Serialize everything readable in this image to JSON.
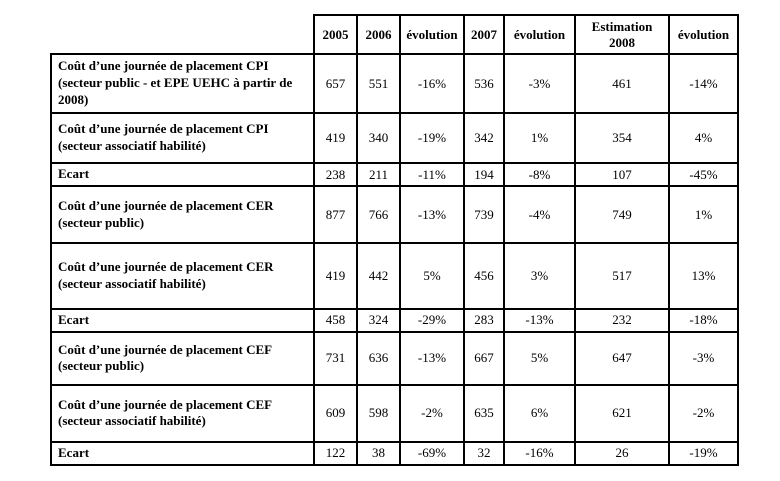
{
  "table": {
    "corner_label": "",
    "columns": [
      "2005",
      "2006",
      "évolution",
      "2007",
      "évolution",
      "Estimation 2008",
      "évolution"
    ],
    "rows": [
      {
        "label": "Coût d’une journée de placement CPI (secteur public - et EPE UEHC à partir de 2008)",
        "values": [
          "657",
          "551",
          "-16%",
          "536",
          "-3%",
          "461",
          "-14%"
        ]
      },
      {
        "label": "Coût d’une journée de placement CPI (secteur associatif habilité)",
        "values": [
          "419",
          "340",
          "-19%",
          "342",
          "1%",
          "354",
          "4%"
        ]
      },
      {
        "label": "Ecart",
        "values": [
          "238",
          "211",
          "-11%",
          "194",
          "-8%",
          "107",
          "-45%"
        ]
      },
      {
        "label": "Coût d’une journée de placement CER (secteur public)",
        "values": [
          "877",
          "766",
          "-13%",
          "739",
          "-4%",
          "749",
          "1%"
        ]
      },
      {
        "label": "Coût d’une journée de placement CER (secteur associatif habilité)",
        "values": [
          "419",
          "442",
          "5%",
          "456",
          "3%",
          "517",
          "13%"
        ]
      },
      {
        "label": "Ecart",
        "values": [
          "458",
          "324",
          "-29%",
          "283",
          "-13%",
          "232",
          "-18%"
        ]
      },
      {
        "label": "Coût d’une journée de placement CEF (secteur public)",
        "values": [
          "731",
          "636",
          "-13%",
          "667",
          "5%",
          "647",
          "-3%"
        ]
      },
      {
        "label": "Coût d’une journée de placement CEF (secteur associatif habilité)",
        "values": [
          "609",
          "598",
          "-2%",
          "635",
          "6%",
          "621",
          "-2%"
        ]
      },
      {
        "label": "Ecart",
        "values": [
          "122",
          "38",
          "-69%",
          "32",
          "-16%",
          "26",
          "-19%"
        ]
      }
    ]
  }
}
